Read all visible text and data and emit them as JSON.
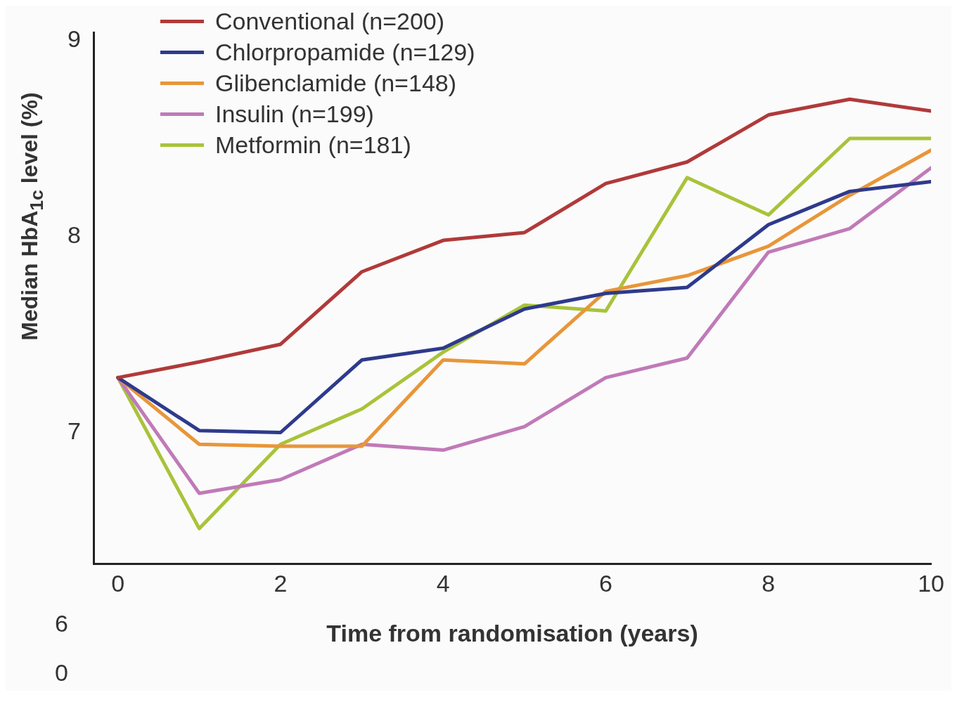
{
  "chart_data": {
    "type": "line",
    "xlabel": "Time from randomisation (years)",
    "ylabel": "Median HbA$_{1c}$ level (%)",
    "x": [
      0,
      1,
      2,
      3,
      4,
      5,
      6,
      7,
      8,
      9,
      10
    ],
    "xlim": [
      -0.3,
      10
    ],
    "ylim": [
      6.33,
      9.04
    ],
    "xticks": [
      0,
      2,
      4,
      6,
      8,
      10
    ],
    "yticks": [
      7,
      8,
      9
    ],
    "grid": false,
    "legend": "top left",
    "marker": "none",
    "line_style": "solid",
    "annotations": [
      "6",
      "0"
    ],
    "series": [
      {
        "name": "Conventional (n=200)",
        "color": "#b03a3a",
        "values": [
          7.28,
          7.36,
          7.45,
          7.82,
          7.98,
          8.02,
          8.27,
          8.38,
          8.62,
          8.7,
          8.64
        ]
      },
      {
        "name": "Chlorpropamide (n=129)",
        "color": "#2e3a8c",
        "values": [
          7.28,
          7.01,
          7.0,
          7.37,
          7.43,
          7.63,
          7.71,
          7.74,
          8.06,
          8.23,
          8.28
        ]
      },
      {
        "name": "Glibenclamide (n=148)",
        "color": "#e8963a",
        "values": [
          7.28,
          6.94,
          6.93,
          6.93,
          7.37,
          7.35,
          7.72,
          7.8,
          7.95,
          8.21,
          8.44
        ]
      },
      {
        "name": "Insulin (n=199)",
        "color": "#c07ab8",
        "values": [
          7.28,
          6.69,
          6.76,
          6.94,
          6.91,
          7.03,
          7.28,
          7.38,
          7.92,
          8.04,
          8.35
        ]
      },
      {
        "name": "Metformin (n=181)",
        "color": "#a8c33a",
        "values": [
          7.28,
          6.51,
          6.94,
          7.12,
          7.41,
          7.65,
          7.62,
          8.3,
          8.11,
          8.5,
          8.5
        ]
      }
    ]
  }
}
